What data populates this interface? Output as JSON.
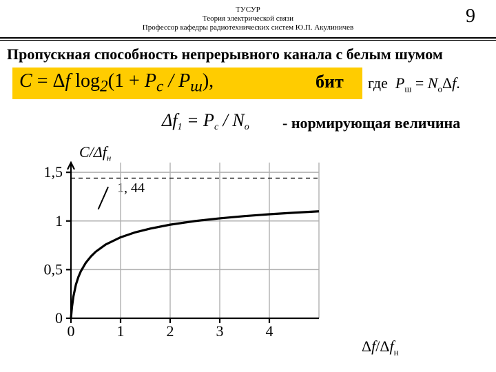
{
  "header": {
    "inst": "ТУСУР",
    "course": "Теория электрической связи",
    "prof": "Профессор кафедры радиотехнических систем Ю.П. Акулиничев"
  },
  "page_number": "9",
  "title": "Пропускная способность непрерывного канала с белым шумом",
  "yellow_formula": "C = Δf log₂(1 + P_c / P_ш),",
  "bit_label": "бит",
  "where_txt": "где  P_ш = N_0 Δf.",
  "eq2_txt": "Δf_1 = P_c / N_0",
  "normalizing": "- нормирующая величина",
  "y_axis_label": "C/Δf_н",
  "x_axis_label": "Δf/Δf_н",
  "value_144": "1, 44",
  "chart": {
    "xlim": [
      0,
      5
    ],
    "ylim": [
      0,
      1.6
    ],
    "xticks": [
      0,
      1,
      2,
      3,
      4
    ],
    "yticks": [
      0,
      0.5,
      1,
      1.5
    ],
    "curve_x": [
      0,
      0.02,
      0.05,
      0.1,
      0.15,
      0.2,
      0.3,
      0.4,
      0.5,
      0.7,
      1.0,
      1.3,
      1.6,
      2.0,
      2.5,
      3.0,
      3.5,
      4.0,
      4.5,
      5.0
    ],
    "curve_y": [
      0,
      0.115,
      0.225,
      0.346,
      0.425,
      0.484,
      0.571,
      0.634,
      0.684,
      0.758,
      0.832,
      0.884,
      0.922,
      0.962,
      0.999,
      1.027,
      1.05,
      1.069,
      1.085,
      1.099
    ],
    "asymptote": 1.44,
    "grid_color": "#b0b0b0",
    "grid_w": 1.4,
    "curve_color": "#000000",
    "curve_w": 3.2,
    "dash_color": "#000000",
    "axis_w": 2.2,
    "tick_font": 22,
    "bg": "#ffffff"
  }
}
